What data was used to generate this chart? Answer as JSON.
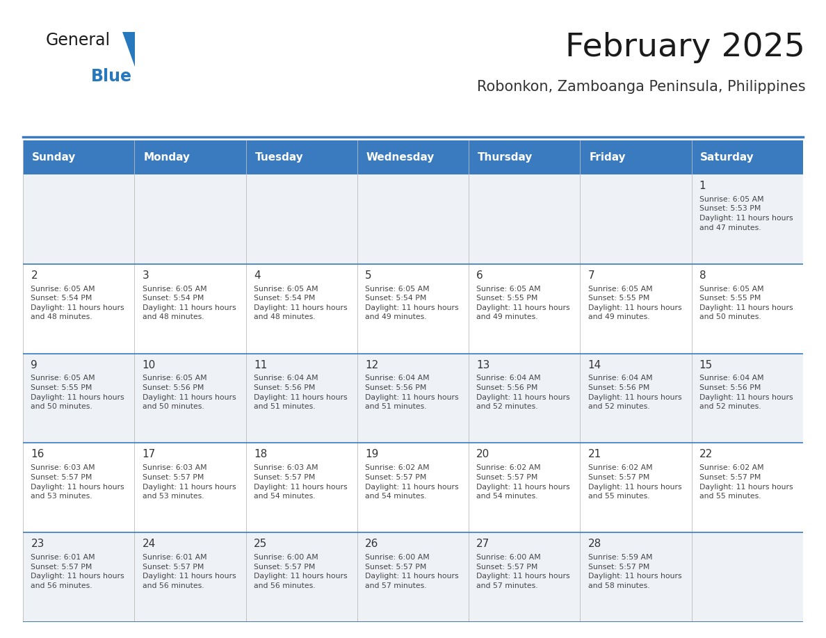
{
  "title": "February 2025",
  "subtitle": "Robonkon, Zamboanga Peninsula, Philippines",
  "days_of_week": [
    "Sunday",
    "Monday",
    "Tuesday",
    "Wednesday",
    "Thursday",
    "Friday",
    "Saturday"
  ],
  "header_bg": "#3a7abf",
  "header_text": "#ffffff",
  "cell_bg_light": "#ffffff",
  "cell_bg_dark": "#eef2f7",
  "divider_color": "#3a7abf",
  "text_color": "#444444",
  "day_num_color": "#333333",
  "title_color": "#1a1a1a",
  "subtitle_color": "#333333",
  "calendar_data": [
    {
      "day": 1,
      "col": 6,
      "row": 0,
      "sunrise": "6:05 AM",
      "sunset": "5:53 PM",
      "daylight": "11 hours and 47 minutes."
    },
    {
      "day": 2,
      "col": 0,
      "row": 1,
      "sunrise": "6:05 AM",
      "sunset": "5:54 PM",
      "daylight": "11 hours and 48 minutes."
    },
    {
      "day": 3,
      "col": 1,
      "row": 1,
      "sunrise": "6:05 AM",
      "sunset": "5:54 PM",
      "daylight": "11 hours and 48 minutes."
    },
    {
      "day": 4,
      "col": 2,
      "row": 1,
      "sunrise": "6:05 AM",
      "sunset": "5:54 PM",
      "daylight": "11 hours and 48 minutes."
    },
    {
      "day": 5,
      "col": 3,
      "row": 1,
      "sunrise": "6:05 AM",
      "sunset": "5:54 PM",
      "daylight": "11 hours and 49 minutes."
    },
    {
      "day": 6,
      "col": 4,
      "row": 1,
      "sunrise": "6:05 AM",
      "sunset": "5:55 PM",
      "daylight": "11 hours and 49 minutes."
    },
    {
      "day": 7,
      "col": 5,
      "row": 1,
      "sunrise": "6:05 AM",
      "sunset": "5:55 PM",
      "daylight": "11 hours and 49 minutes."
    },
    {
      "day": 8,
      "col": 6,
      "row": 1,
      "sunrise": "6:05 AM",
      "sunset": "5:55 PM",
      "daylight": "11 hours and 50 minutes."
    },
    {
      "day": 9,
      "col": 0,
      "row": 2,
      "sunrise": "6:05 AM",
      "sunset": "5:55 PM",
      "daylight": "11 hours and 50 minutes."
    },
    {
      "day": 10,
      "col": 1,
      "row": 2,
      "sunrise": "6:05 AM",
      "sunset": "5:56 PM",
      "daylight": "11 hours and 50 minutes."
    },
    {
      "day": 11,
      "col": 2,
      "row": 2,
      "sunrise": "6:04 AM",
      "sunset": "5:56 PM",
      "daylight": "11 hours and 51 minutes."
    },
    {
      "day": 12,
      "col": 3,
      "row": 2,
      "sunrise": "6:04 AM",
      "sunset": "5:56 PM",
      "daylight": "11 hours and 51 minutes."
    },
    {
      "day": 13,
      "col": 4,
      "row": 2,
      "sunrise": "6:04 AM",
      "sunset": "5:56 PM",
      "daylight": "11 hours and 52 minutes."
    },
    {
      "day": 14,
      "col": 5,
      "row": 2,
      "sunrise": "6:04 AM",
      "sunset": "5:56 PM",
      "daylight": "11 hours and 52 minutes."
    },
    {
      "day": 15,
      "col": 6,
      "row": 2,
      "sunrise": "6:04 AM",
      "sunset": "5:56 PM",
      "daylight": "11 hours and 52 minutes."
    },
    {
      "day": 16,
      "col": 0,
      "row": 3,
      "sunrise": "6:03 AM",
      "sunset": "5:57 PM",
      "daylight": "11 hours and 53 minutes."
    },
    {
      "day": 17,
      "col": 1,
      "row": 3,
      "sunrise": "6:03 AM",
      "sunset": "5:57 PM",
      "daylight": "11 hours and 53 minutes."
    },
    {
      "day": 18,
      "col": 2,
      "row": 3,
      "sunrise": "6:03 AM",
      "sunset": "5:57 PM",
      "daylight": "11 hours and 54 minutes."
    },
    {
      "day": 19,
      "col": 3,
      "row": 3,
      "sunrise": "6:02 AM",
      "sunset": "5:57 PM",
      "daylight": "11 hours and 54 minutes."
    },
    {
      "day": 20,
      "col": 4,
      "row": 3,
      "sunrise": "6:02 AM",
      "sunset": "5:57 PM",
      "daylight": "11 hours and 54 minutes."
    },
    {
      "day": 21,
      "col": 5,
      "row": 3,
      "sunrise": "6:02 AM",
      "sunset": "5:57 PM",
      "daylight": "11 hours and 55 minutes."
    },
    {
      "day": 22,
      "col": 6,
      "row": 3,
      "sunrise": "6:02 AM",
      "sunset": "5:57 PM",
      "daylight": "11 hours and 55 minutes."
    },
    {
      "day": 23,
      "col": 0,
      "row": 4,
      "sunrise": "6:01 AM",
      "sunset": "5:57 PM",
      "daylight": "11 hours and 56 minutes."
    },
    {
      "day": 24,
      "col": 1,
      "row": 4,
      "sunrise": "6:01 AM",
      "sunset": "5:57 PM",
      "daylight": "11 hours and 56 minutes."
    },
    {
      "day": 25,
      "col": 2,
      "row": 4,
      "sunrise": "6:00 AM",
      "sunset": "5:57 PM",
      "daylight": "11 hours and 56 minutes."
    },
    {
      "day": 26,
      "col": 3,
      "row": 4,
      "sunrise": "6:00 AM",
      "sunset": "5:57 PM",
      "daylight": "11 hours and 57 minutes."
    },
    {
      "day": 27,
      "col": 4,
      "row": 4,
      "sunrise": "6:00 AM",
      "sunset": "5:57 PM",
      "daylight": "11 hours and 57 minutes."
    },
    {
      "day": 28,
      "col": 5,
      "row": 4,
      "sunrise": "5:59 AM",
      "sunset": "5:57 PM",
      "daylight": "11 hours and 58 minutes."
    }
  ],
  "num_rows": 5,
  "num_cols": 7,
  "logo_general_color": "#1a1a1a",
  "logo_blue_color": "#2878be"
}
